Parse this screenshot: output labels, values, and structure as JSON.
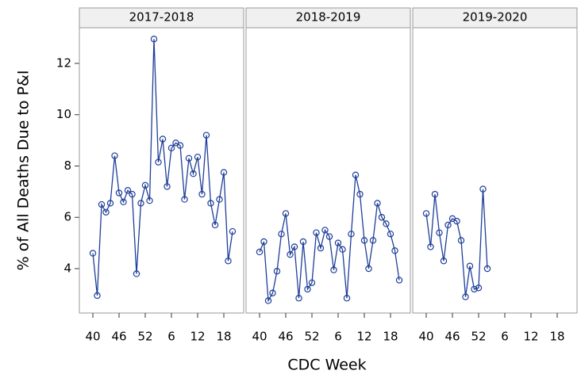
{
  "chart_data": {
    "type": "line",
    "xlabel": "CDC Week",
    "ylabel": "% of All Deaths Due to P&I",
    "color": "#1f3f99",
    "ylim": [
      2.27,
      13.39
    ],
    "yticks": [
      4,
      6,
      8,
      10,
      12
    ],
    "categories": [
      "40",
      null,
      null,
      null,
      null,
      null,
      "46",
      null,
      null,
      null,
      null,
      null,
      "52",
      null,
      null,
      null,
      null,
      null,
      "6",
      null,
      null,
      null,
      null,
      null,
      "12",
      null,
      null,
      null,
      null,
      null,
      "18",
      null,
      null
    ],
    "panels": [
      {
        "title": "2017-2018",
        "values": [
          4.6,
          2.95,
          6.5,
          6.2,
          6.55,
          8.4,
          6.95,
          6.6,
          7.05,
          6.9,
          3.8,
          6.55,
          7.25,
          6.65,
          12.95,
          8.15,
          9.05,
          7.2,
          8.7,
          8.9,
          8.8,
          6.7,
          8.3,
          7.7,
          8.35,
          6.9,
          9.2,
          6.55,
          5.7,
          6.7,
          7.75,
          4.3,
          5.45
        ]
      },
      {
        "title": "2018-2019",
        "values": [
          4.65,
          5.05,
          2.75,
          3.05,
          3.9,
          5.35,
          6.15,
          4.55,
          4.85,
          2.85,
          5.05,
          3.2,
          3.45,
          5.4,
          4.8,
          5.5,
          5.25,
          3.95,
          5.0,
          4.75,
          2.85,
          5.35,
          7.65,
          6.9,
          5.1,
          4.0,
          5.1,
          6.55,
          6.0,
          5.75,
          5.35,
          4.7,
          3.55
        ]
      },
      {
        "title": "2019-2020",
        "values": [
          6.15,
          4.85,
          6.9,
          5.4,
          4.3,
          5.7,
          5.95,
          5.85,
          5.1,
          2.9,
          4.1,
          3.2,
          3.25,
          7.1,
          4.0,
          null,
          null,
          null,
          null,
          null,
          null,
          null,
          null,
          null,
          null,
          null,
          null,
          null,
          null,
          null,
          null,
          null,
          null
        ]
      }
    ]
  }
}
